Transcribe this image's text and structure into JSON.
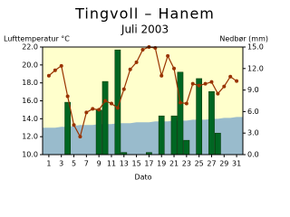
{
  "chart_data": {
    "type": "combo",
    "title": "Tingvoll – Hanem",
    "subtitle": "Juli 2003",
    "y_label": "Lufttemperatur °C",
    "y2_label": "Nedbør (mm)",
    "x_label": "Dato",
    "background": "#ffffcc",
    "x": [
      1,
      2,
      3,
      4,
      5,
      6,
      7,
      8,
      9,
      10,
      11,
      12,
      13,
      14,
      15,
      16,
      17,
      18,
      19,
      20,
      21,
      22,
      23,
      24,
      25,
      26,
      27,
      28,
      29,
      30,
      31
    ],
    "xlim": [
      0,
      32
    ],
    "xticks": [
      1,
      3,
      5,
      7,
      9,
      11,
      13,
      15,
      17,
      19,
      21,
      23,
      25,
      27,
      29,
      31
    ],
    "ylim": [
      10,
      22
    ],
    "yticks": [
      {
        "value": 10,
        "label": "10.0"
      },
      {
        "value": 12,
        "label": "12.0"
      },
      {
        "value": 14,
        "label": "14.0"
      },
      {
        "value": 16,
        "label": "16.0"
      },
      {
        "value": 18,
        "label": "18.0"
      },
      {
        "value": 20,
        "label": "20.0"
      },
      {
        "value": 22,
        "label": "22.0"
      }
    ],
    "y2lim": [
      0,
      15
    ],
    "y2ticks": [
      {
        "value": 0,
        "label": "0.0"
      },
      {
        "value": 3,
        "label": "3.0"
      },
      {
        "value": 6,
        "label": "6.0"
      },
      {
        "value": 9,
        "label": "9.0"
      },
      {
        "value": 12,
        "label": "12.0"
      },
      {
        "value": 15,
        "label": "15.0"
      }
    ],
    "series": [
      {
        "type": "area",
        "color": "#99bbcc",
        "values": [
          13.0,
          13.0,
          13.1,
          13.1,
          13.2,
          13.3,
          13.3,
          13.3,
          13.4,
          13.4,
          13.4,
          13.5,
          13.5,
          13.5,
          13.6,
          13.6,
          13.6,
          13.7,
          13.7,
          13.7,
          13.8,
          13.8,
          13.8,
          13.9,
          13.9,
          13.9,
          14.0,
          14.0,
          14.1,
          14.1,
          14.2
        ]
      },
      {
        "type": "bar",
        "axis": "y2",
        "color": "#006622",
        "values": [
          0,
          0,
          0,
          7.3,
          0,
          0,
          0,
          0,
          6.2,
          10.2,
          0,
          14.6,
          0.3,
          0,
          0,
          0,
          0.3,
          0,
          5.4,
          0,
          5.4,
          11.5,
          2.0,
          0,
          10.6,
          0,
          8.8,
          3.0,
          0,
          0,
          0
        ]
      },
      {
        "type": "line",
        "color": "#993300",
        "values": [
          18.8,
          19.4,
          19.9,
          16.5,
          13.3,
          12.0,
          14.7,
          15.1,
          15.0,
          16.0,
          15.7,
          15.2,
          17.3,
          19.5,
          20.3,
          21.7,
          22.0,
          21.9,
          18.8,
          21.0,
          19.6,
          15.8,
          15.7,
          17.9,
          17.7,
          17.9,
          18.1,
          16.8,
          17.6,
          18.7,
          18.2
        ]
      }
    ]
  }
}
